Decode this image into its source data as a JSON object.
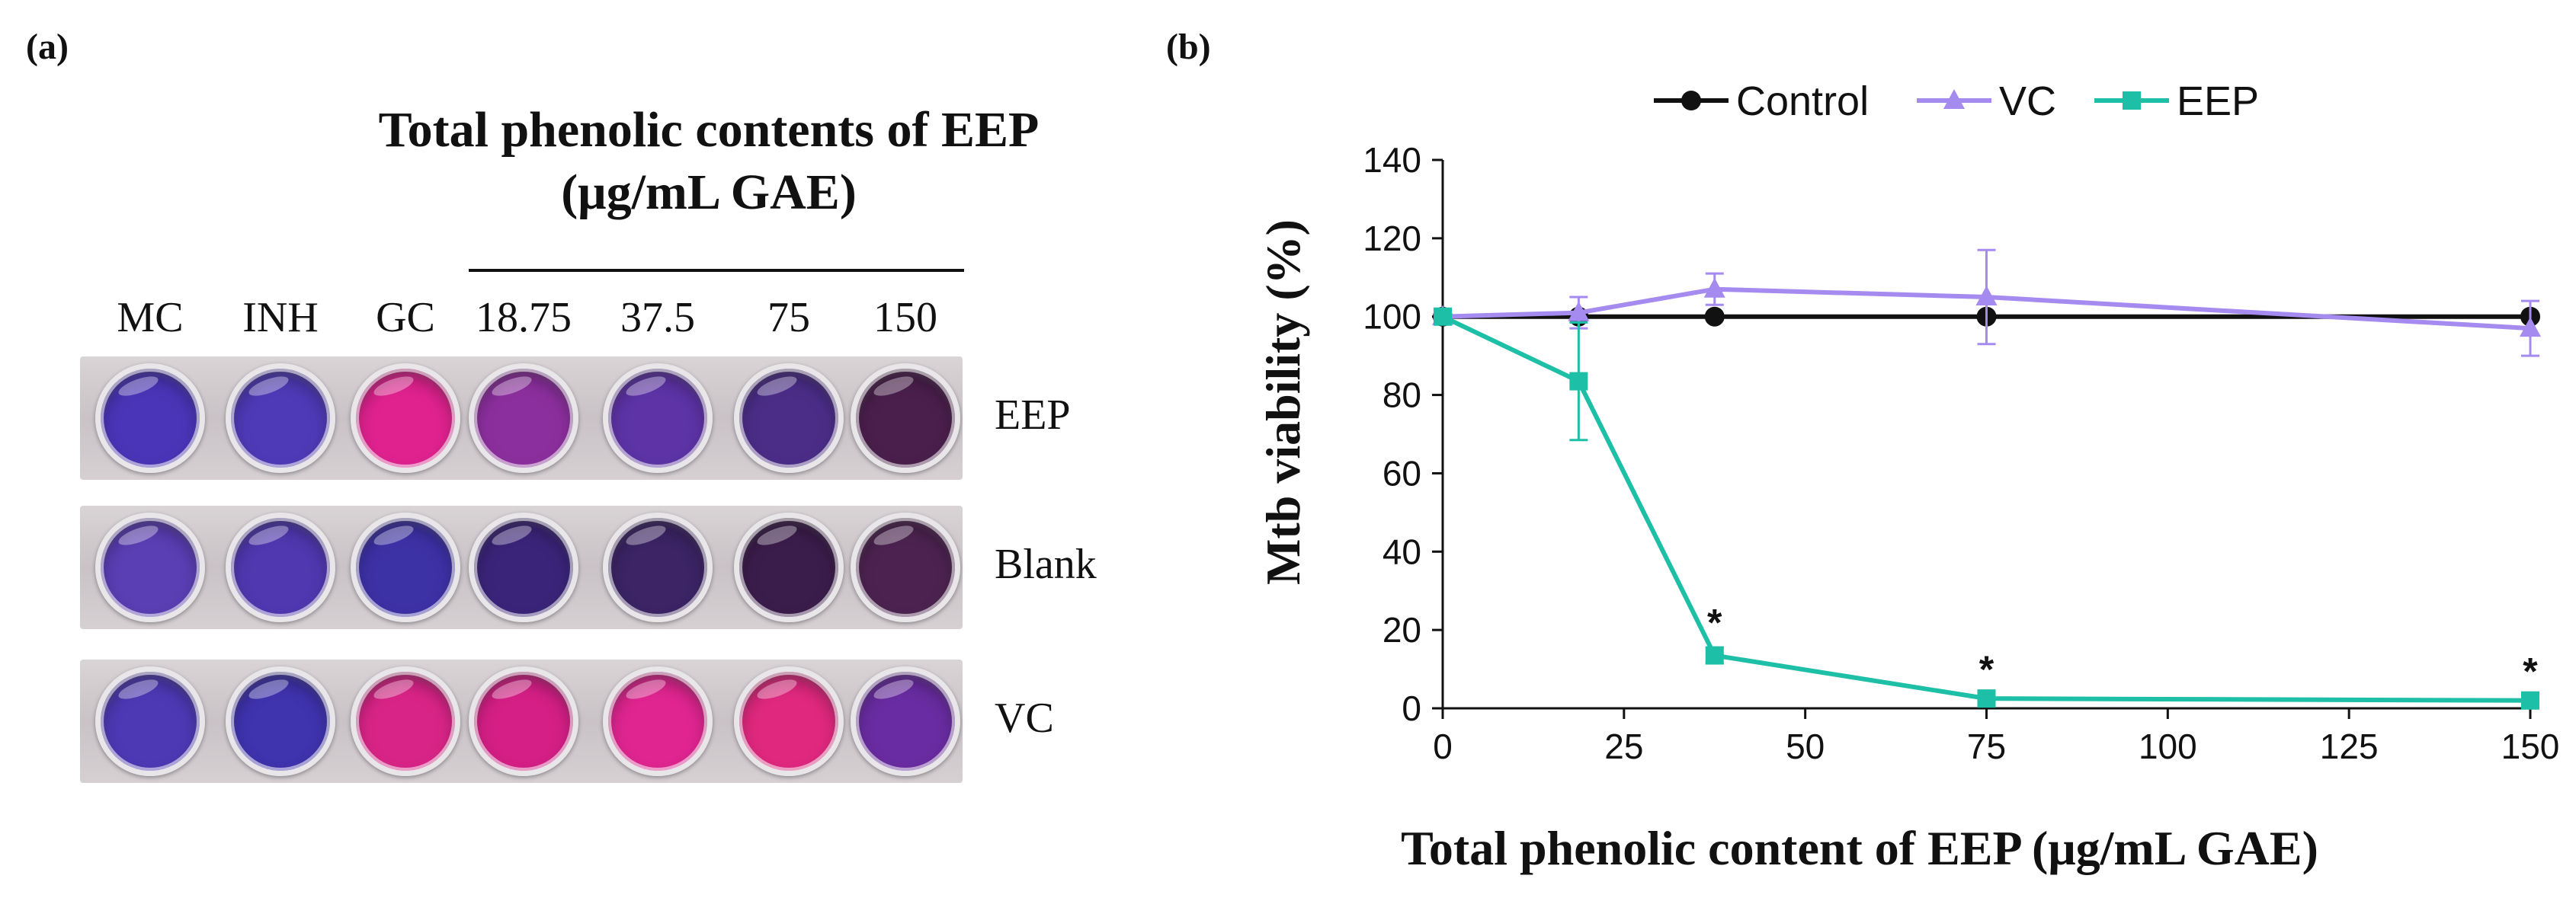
{
  "panel_a": {
    "label": "(a)",
    "title_line1": "Total phenolic contents of EEP",
    "title_line2": "(μg/mL GAE)",
    "columns": [
      "MC",
      "INH",
      "GC",
      "18.75",
      "37.5",
      "75",
      "150"
    ],
    "rows": [
      {
        "label": "EEP",
        "wells": [
          "#4a35b8",
          "#4e3ab6",
          "#e0228f",
          "#8c2f9e",
          "#5d33a6",
          "#4b2d88",
          "#4a1f4c"
        ]
      },
      {
        "label": "Blank",
        "wells": [
          "#5a3eb4",
          "#4f38b0",
          "#3d31a6",
          "#3a2479",
          "#3c2465",
          "#3b1d4b",
          "#4c2350"
        ]
      },
      {
        "label": "VC",
        "wells": [
          "#4d39b4",
          "#3f33ae",
          "#d92487",
          "#d51f86",
          "#e02590",
          "#e0287f",
          "#6a2ca2"
        ]
      }
    ]
  },
  "panel_b": {
    "label": "(b)"
  },
  "colors": {
    "control": "#111111",
    "vc": "#a58af0",
    "eep": "#1dbfa6"
  },
  "chart_data": {
    "type": "line",
    "title": "",
    "xlabel": "Total phenolic content of EEP (μg/mL GAE)",
    "ylabel": "Mtb viability (%)",
    "xlim": [
      0,
      150
    ],
    "ylim": [
      0,
      140
    ],
    "xticks": [
      0,
      25,
      50,
      75,
      100,
      125,
      150
    ],
    "yticks": [
      0,
      20,
      40,
      60,
      80,
      100,
      120,
      140
    ],
    "legend_position": "top",
    "x": [
      0,
      18.75,
      37.5,
      75,
      150
    ],
    "series": [
      {
        "name": "Control",
        "marker": "circle",
        "values": [
          100,
          100,
          100,
          100,
          100
        ],
        "error": [
          0,
          0,
          0,
          0,
          0
        ]
      },
      {
        "name": "VC",
        "marker": "triangle",
        "values": [
          100,
          101,
          107,
          105,
          97
        ],
        "error": [
          0,
          4,
          4,
          12,
          7
        ]
      },
      {
        "name": "EEP",
        "marker": "square",
        "values": [
          100,
          83.5,
          13.5,
          2.5,
          2
        ],
        "error": [
          0,
          15,
          2,
          1,
          1
        ]
      }
    ],
    "annotations": [
      {
        "text": "*",
        "x": 37.5,
        "series": "EEP"
      },
      {
        "text": "*",
        "x": 75,
        "series": "EEP"
      },
      {
        "text": "*",
        "x": 150,
        "series": "EEP"
      }
    ]
  }
}
